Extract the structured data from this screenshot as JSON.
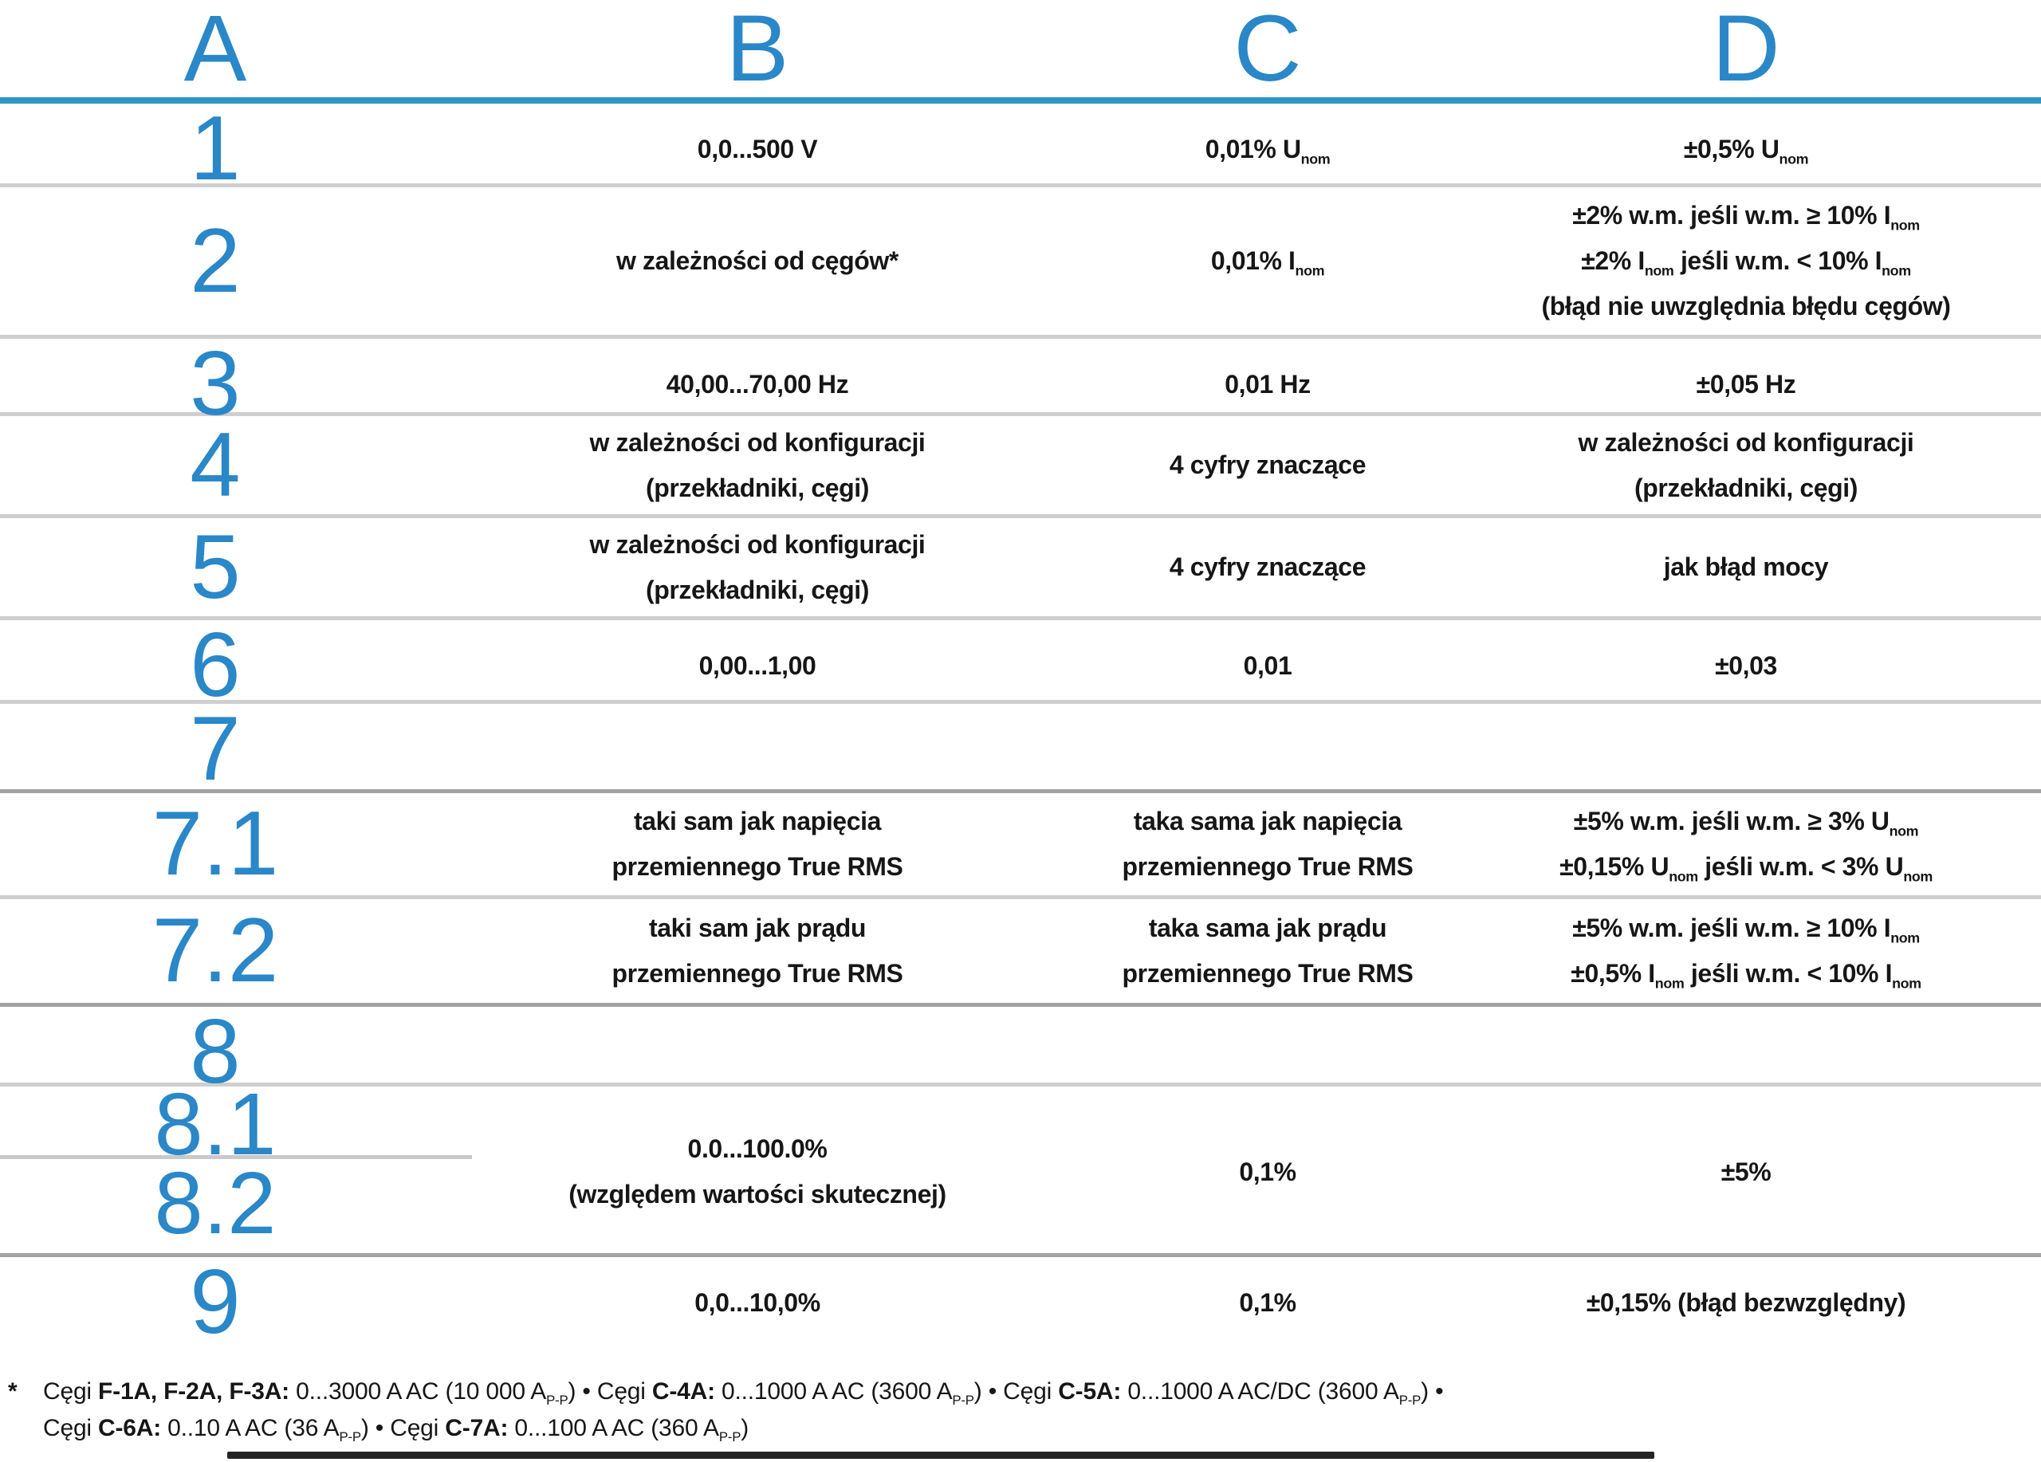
{
  "colors": {
    "accent_blue": "#2a87c8",
    "header_rule_blue": "#2f95c5",
    "row_rule_gray": "#cfcfcf",
    "row_rule_gray_dark": "#a3a3a3",
    "text": "#161616"
  },
  "table": {
    "header": {
      "letters": [
        "A",
        "B",
        "C",
        "D"
      ]
    },
    "rows": {
      "r1": {
        "label": "1",
        "b": [
          "0,0...500 V"
        ],
        "c": [
          "0,01% U~nom~"
        ],
        "d": [
          "±0,5% U~nom~"
        ]
      },
      "r2": {
        "label": "2",
        "b": [
          "w zależności od cęgów*"
        ],
        "c": [
          "0,01% I~nom~"
        ],
        "d": [
          "±2% w.m. jeśli w.m. ≥ 10% I~nom~",
          "±2% I~nom~ jeśli w.m. < 10% I~nom~",
          "(błąd nie uwzględnia błędu cęgów)"
        ]
      },
      "r3": {
        "label": "3",
        "b": [
          "40,00...70,00 Hz"
        ],
        "c": [
          "0,01 Hz"
        ],
        "d": [
          "±0,05 Hz"
        ]
      },
      "r4": {
        "label": "4",
        "b": [
          "w zależności od konfiguracji",
          "(przekładniki, cęgi)"
        ],
        "c": [
          "4 cyfry znaczące"
        ],
        "d": [
          "w zależności od konfiguracji",
          "(przekładniki, cęgi)"
        ]
      },
      "r5": {
        "label": "5",
        "b": [
          "w zależności od konfiguracji",
          "(przekładniki, cęgi)"
        ],
        "c": [
          "4 cyfry znaczące"
        ],
        "d": [
          "jak błąd mocy"
        ]
      },
      "r6": {
        "label": "6",
        "b": [
          "0,00...1,00"
        ],
        "c": [
          "0,01"
        ],
        "d": [
          "±0,03"
        ]
      },
      "r7": {
        "label": "7"
      },
      "r71": {
        "label": "7.1",
        "b": [
          "taki sam jak napięcia",
          "przemiennego True RMS"
        ],
        "c": [
          "taka sama jak napięcia",
          "przemiennego True RMS"
        ],
        "d": [
          "±5% w.m. jeśli w.m. ≥ 3% U~nom~",
          "±0,15% U~nom~ jeśli w.m. < 3% U~nom~"
        ]
      },
      "r72": {
        "label": "7.2",
        "b": [
          "taki sam jak prądu",
          "przemiennego True RMS"
        ],
        "c": [
          "taka sama jak prądu",
          "przemiennego True RMS"
        ],
        "d": [
          "±5% w.m. jeśli w.m. ≥ 10% I~nom~",
          "±0,5% I~nom~ jeśli w.m. < 10% I~nom~"
        ]
      },
      "r8": {
        "label": "8"
      },
      "r81": {
        "label": "8.1"
      },
      "r82": {
        "label": "8.2"
      },
      "group8": {
        "b": [
          "0.0...100.0%",
          "(względem wartości skutecznej)"
        ],
        "c": [
          "0,1%"
        ],
        "d": [
          "±5%"
        ]
      },
      "r9": {
        "label": "9",
        "b": [
          "0,0...10,0%"
        ],
        "c": [
          "0,1%"
        ],
        "d": [
          "±0,15% (błąd bezwzględny)"
        ]
      }
    }
  },
  "footnote": {
    "marker": "*",
    "lines": [
      "Cęgi **F-1A, F-2A, F-3A:** 0...3000 A AC (10 000 A~P-P~) • Cęgi **C-4A:** 0...1000 A AC (3600 A~P-P~) • Cęgi **C-5A:** 0...1000 A AC/DC (3600 A~P-P~) •",
      "Cęgi **C-6A:** 0..10 A AC (36 A~P-P~) • Cęgi **C-7A:** 0...100 A AC (360 A~P-P~)"
    ]
  }
}
